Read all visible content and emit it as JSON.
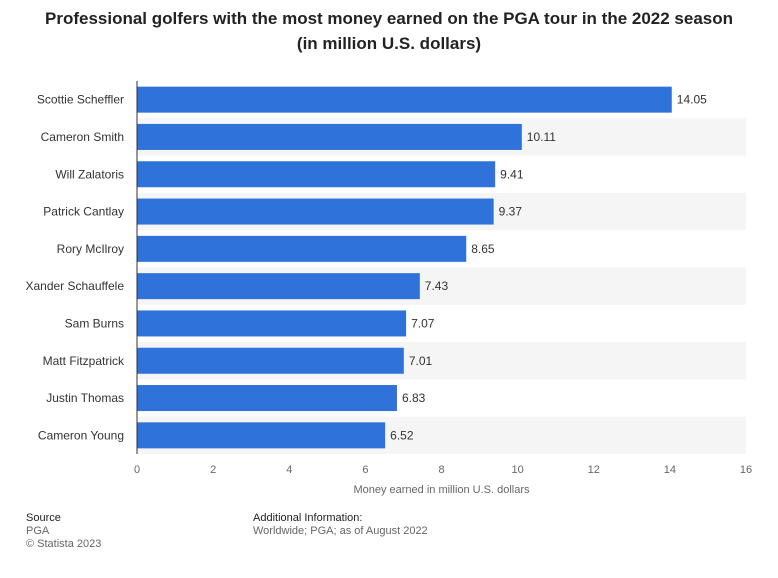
{
  "chart_data": {
    "type": "bar",
    "orientation": "horizontal",
    "title_line1": "Professional golfers with the most money earned on the PGA tour in the 2022 season",
    "title_line2": "(in million U.S. dollars)",
    "categories": [
      "Scottie Scheffler",
      "Cameron Smith",
      "Will Zalatoris",
      "Patrick Cantlay",
      "Rory McIlroy",
      "Xander Schauffele",
      "Sam Burns",
      "Matt Fitzpatrick",
      "Justin Thomas",
      "Cameron Young"
    ],
    "values": [
      14.05,
      10.11,
      9.41,
      9.37,
      8.65,
      7.43,
      7.07,
      7.01,
      6.83,
      6.52
    ],
    "value_labels": [
      "14.05",
      "10.11",
      "9.41",
      "9.37",
      "8.65",
      "7.43",
      "7.07",
      "7.01",
      "6.83",
      "6.52"
    ],
    "xlabel": "Money earned in million U.S. dollars",
    "xlim": [
      0,
      16
    ],
    "xticks": [
      0,
      2,
      4,
      6,
      8,
      10,
      12,
      14,
      16
    ],
    "xtick_labels": [
      "0",
      "2",
      "4",
      "6",
      "8",
      "10",
      "12",
      "14",
      "16"
    ],
    "bar_color": "#2f72d9",
    "band_color": "#f5f5f5"
  },
  "footer": {
    "source_heading": "Source",
    "source_line1": "PGA",
    "source_line2": "© Statista 2023",
    "info_heading": "Additional Information:",
    "info_text": "Worldwide; PGA; as of August 2022"
  }
}
